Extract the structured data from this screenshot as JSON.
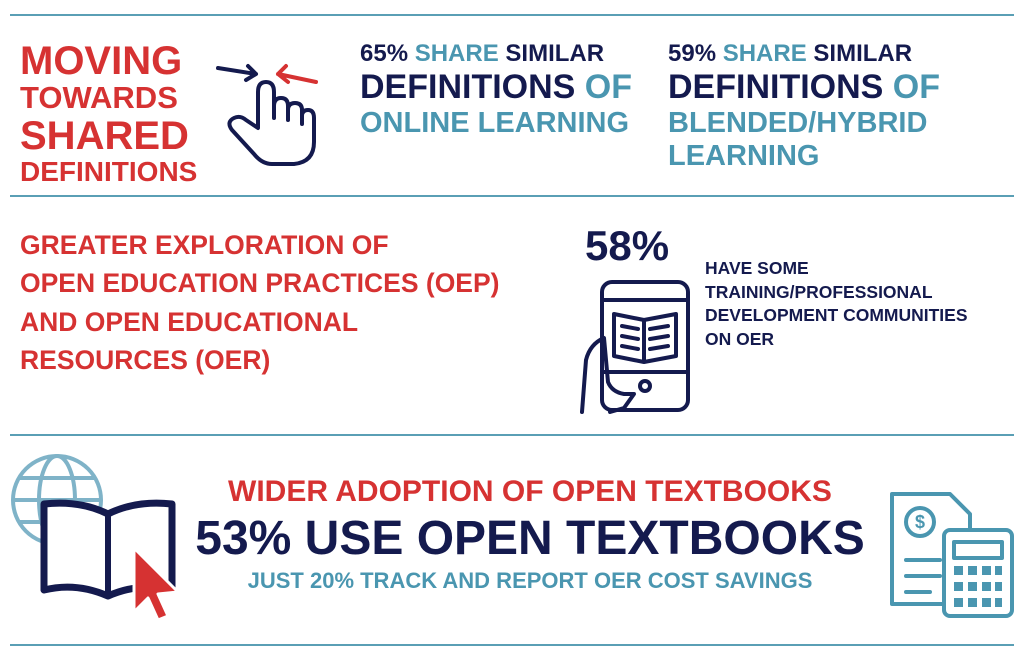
{
  "header_section": {
    "title_lines": [
      "MOVING",
      "TOWARDS",
      "SHARED",
      "DEFINITIONS"
    ],
    "stats": [
      {
        "lines": [
          [
            {
              "text": "65%",
              "color": "#141a4e"
            },
            {
              "text": "SHARE",
              "color": "#4a96b0"
            },
            {
              "text": "SIMILAR",
              "color": "#141a4e"
            }
          ],
          [
            {
              "text": "DEFINITIONS",
              "color": "#141a4e"
            },
            {
              "text": "OF",
              "color": "#4a96b0"
            }
          ],
          [
            {
              "text": "ONLINE LEARNING",
              "color": "#4a96b0"
            }
          ]
        ]
      },
      {
        "lines": [
          [
            {
              "text": "59%",
              "color": "#141a4e"
            },
            {
              "text": "SHARE",
              "color": "#4a96b0"
            },
            {
              "text": "SIMILAR",
              "color": "#141a4e"
            }
          ],
          [
            {
              "text": "DEFINITIONS",
              "color": "#141a4e"
            },
            {
              "text": "OF",
              "color": "#4a96b0"
            }
          ],
          [
            {
              "text": "BLENDED/HYBRID",
              "color": "#4a96b0"
            }
          ],
          [
            {
              "text": "LEARNING",
              "color": "#4a96b0"
            }
          ]
        ]
      }
    ]
  },
  "oer_section": {
    "lines": [
      "GREATER EXPLORATION OF",
      "OPEN EDUCATION PRACTICES (OEP)",
      "AND OPEN EDUCATIONAL",
      "RESOURCES (OER)"
    ],
    "stat": "58%",
    "note_lines": [
      "HAVE SOME",
      "TRAINING/PROFESSIONAL",
      "DEVELOPMENT COMMUNITIES",
      "ON OER"
    ]
  },
  "textbook_section": {
    "heading": "WIDER ADOPTION OF OPEN TEXTBOOKS",
    "stat": "53% USE OPEN TEXTBOOKS",
    "note": "JUST 20% TRACK AND REPORT OER COST SAVINGS"
  }
}
